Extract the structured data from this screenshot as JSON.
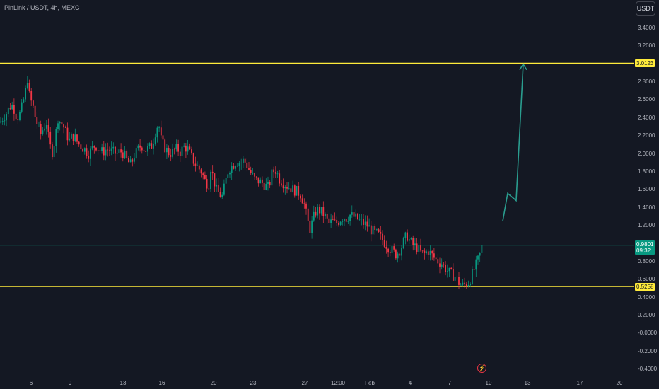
{
  "header": {
    "symbol_title": "PinLink / USDT, 4h, MEXC",
    "currency_button": "USDT"
  },
  "price_tags": {
    "resistance": "3.0123",
    "current_price": "0.9801",
    "countdown": "09:32",
    "support": "0.5258"
  },
  "icons": {
    "flash": "⚡"
  },
  "colors": {
    "background": "#141823",
    "up": "#089981",
    "down": "#f23645",
    "level": "#ffeb3b",
    "projection": "#2a9d8f"
  },
  "chart_data": {
    "type": "candlestick",
    "symbol": "PinLink / USDT",
    "interval": "4h",
    "exchange": "MEXC",
    "y_ticks": [
      "3.4000",
      "3.2000",
      "3.0123",
      "2.8000",
      "2.6000",
      "2.4000",
      "2.2000",
      "2.0000",
      "1.8000",
      "1.6000",
      "1.4000",
      "1.2000",
      "0.9801",
      "0.8000",
      "0.6000",
      "0.5258",
      "0.4000",
      "0.2000",
      "-0.0000",
      "-0.2000",
      "-0.4000"
    ],
    "y_range": [
      -0.4,
      3.4
    ],
    "x_ticks": [
      "6",
      "9",
      "13",
      "16",
      "20",
      "23",
      "27",
      "12:00",
      "Feb",
      "4",
      "7",
      "10",
      "13",
      "17",
      "20"
    ],
    "horizontal_levels": [
      3.0123,
      0.5258
    ],
    "current_price": 0.9801,
    "price_path": [
      [
        0,
        2.35
      ],
      [
        4,
        2.4
      ],
      [
        8,
        2.44
      ],
      [
        12,
        2.5
      ],
      [
        16,
        2.55
      ],
      [
        20,
        2.5
      ],
      [
        24,
        2.4
      ],
      [
        28,
        2.45
      ],
      [
        32,
        2.55
      ],
      [
        36,
        2.7
      ],
      [
        39,
        2.85
      ],
      [
        42,
        2.62
      ],
      [
        46,
        2.55
      ],
      [
        50,
        2.4
      ],
      [
        54,
        2.3
      ],
      [
        58,
        2.22
      ],
      [
        62,
        2.3
      ],
      [
        66,
        2.35
      ],
      [
        70,
        2.1
      ],
      [
        74,
        2.02
      ],
      [
        78,
        2.18
      ],
      [
        82,
        2.4
      ],
      [
        86,
        2.35
      ],
      [
        90,
        2.3
      ],
      [
        94,
        2.22
      ],
      [
        98,
        2.15
      ],
      [
        102,
        2.2
      ],
      [
        106,
        2.18
      ],
      [
        110,
        2.12
      ],
      [
        115,
        2.08
      ],
      [
        120,
        2.05
      ],
      [
        125,
        2.0
      ],
      [
        130,
        2.06
      ],
      [
        135,
        2.1
      ],
      [
        140,
        2.05
      ],
      [
        145,
        2.02
      ],
      [
        150,
        2.05
      ],
      [
        155,
        2.04
      ],
      [
        160,
        2.02
      ],
      [
        165,
        2.0
      ],
      [
        170,
        2.03
      ],
      [
        175,
        2.0
      ],
      [
        180,
        1.92
      ],
      [
        185,
        1.88
      ],
      [
        190,
        1.98
      ],
      [
        195,
        2.05
      ],
      [
        200,
        2.1
      ],
      [
        205,
        2.04
      ],
      [
        210,
        2.06
      ],
      [
        215,
        2.1
      ],
      [
        220,
        2.25
      ],
      [
        224,
        2.35
      ],
      [
        228,
        2.15
      ],
      [
        232,
        2.08
      ],
      [
        236,
        2.04
      ],
      [
        240,
        2.0
      ],
      [
        245,
        2.03
      ],
      [
        250,
        2.06
      ],
      [
        255,
        2.02
      ],
      [
        260,
        2.08
      ],
      [
        265,
        2.06
      ],
      [
        270,
        1.98
      ],
      [
        275,
        1.9
      ],
      [
        280,
        1.85
      ],
      [
        285,
        1.8
      ],
      [
        290,
        1.7
      ],
      [
        295,
        1.65
      ],
      [
        298,
        1.85
      ],
      [
        302,
        1.72
      ],
      [
        306,
        1.6
      ],
      [
        310,
        1.55
      ],
      [
        314,
        1.52
      ],
      [
        318,
        1.65
      ],
      [
        322,
        1.8
      ],
      [
        326,
        1.85
      ],
      [
        330,
        1.88
      ],
      [
        335,
        1.92
      ],
      [
        340,
        1.9
      ],
      [
        345,
        1.93
      ],
      [
        350,
        1.86
      ],
      [
        355,
        1.78
      ],
      [
        360,
        1.72
      ],
      [
        365,
        1.7
      ],
      [
        370,
        1.68
      ],
      [
        375,
        1.65
      ],
      [
        380,
        1.62
      ],
      [
        385,
        1.8
      ],
      [
        390,
        1.82
      ],
      [
        395,
        1.72
      ],
      [
        400,
        1.68
      ],
      [
        405,
        1.65
      ],
      [
        410,
        1.62
      ],
      [
        415,
        1.6
      ],
      [
        420,
        1.58
      ],
      [
        425,
        1.55
      ],
      [
        430,
        1.45
      ],
      [
        434,
        1.3
      ],
      [
        438,
        1.15
      ],
      [
        442,
        1.25
      ],
      [
        446,
        1.35
      ],
      [
        450,
        1.38
      ],
      [
        455,
        1.35
      ],
      [
        460,
        1.3
      ],
      [
        465,
        1.22
      ],
      [
        470,
        1.25
      ],
      [
        475,
        1.22
      ],
      [
        480,
        1.26
      ],
      [
        485,
        1.3
      ],
      [
        490,
        1.28
      ],
      [
        495,
        1.32
      ],
      [
        500,
        1.3
      ],
      [
        505,
        1.28
      ],
      [
        510,
        1.25
      ],
      [
        515,
        1.22
      ],
      [
        520,
        1.2
      ],
      [
        525,
        1.15
      ],
      [
        530,
        1.12
      ],
      [
        535,
        1.1
      ],
      [
        540,
        1.05
      ],
      [
        545,
        1.0
      ],
      [
        550,
        0.95
      ],
      [
        555,
        0.92
      ],
      [
        560,
        0.88
      ],
      [
        565,
        0.92
      ],
      [
        570,
        1.0
      ],
      [
        575,
        1.1
      ],
      [
        580,
        1.02
      ],
      [
        585,
        0.98
      ],
      [
        590,
        0.95
      ],
      [
        595,
        0.9
      ],
      [
        600,
        0.88
      ],
      [
        605,
        0.92
      ],
      [
        610,
        0.88
      ],
      [
        615,
        0.83
      ],
      [
        620,
        0.8
      ],
      [
        625,
        0.78
      ],
      [
        630,
        0.72
      ],
      [
        635,
        0.68
      ],
      [
        640,
        0.65
      ],
      [
        645,
        0.62
      ],
      [
        650,
        0.55
      ],
      [
        654,
        0.53
      ],
      [
        658,
        0.55
      ],
      [
        662,
        0.56
      ],
      [
        666,
        0.62
      ],
      [
        670,
        0.7
      ],
      [
        674,
        0.78
      ],
      [
        678,
        0.85
      ],
      [
        682,
        0.98
      ]
    ],
    "projection_path": [
      [
        711,
        1.25
      ],
      [
        718,
        1.56
      ],
      [
        730,
        1.48
      ],
      [
        740,
        3.0
      ]
    ]
  }
}
